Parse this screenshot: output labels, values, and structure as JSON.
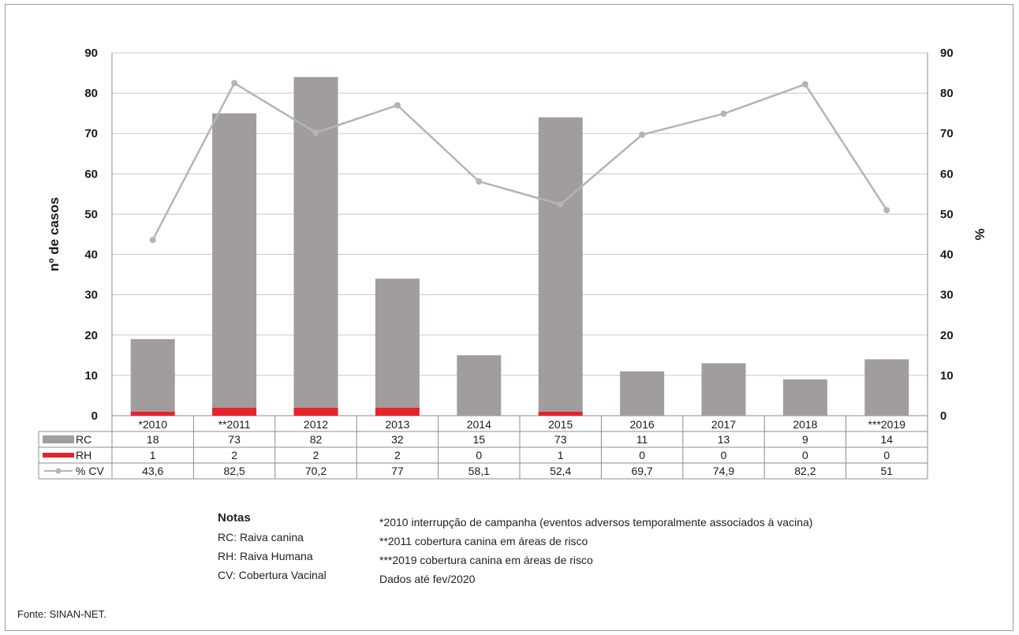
{
  "chart_data": {
    "type": "bar",
    "categories": [
      "*2010",
      "**2011",
      "2012",
      "2013",
      "2014",
      "2015",
      "2016",
      "2017",
      "2018",
      "***2019"
    ],
    "series": [
      {
        "name": "RC",
        "kind": "bar",
        "color": "#a19d9c",
        "values": [
          18,
          73,
          82,
          32,
          15,
          73,
          11,
          13,
          9,
          14
        ],
        "display": [
          "18",
          "73",
          "82",
          "32",
          "15",
          "73",
          "11",
          "13",
          "9",
          "14"
        ]
      },
      {
        "name": "RH",
        "kind": "bar",
        "color": "#e8212b",
        "values": [
          1,
          2,
          2,
          2,
          0,
          1,
          0,
          0,
          0,
          0
        ],
        "display": [
          "1",
          "2",
          "2",
          "2",
          "0",
          "1",
          "0",
          "0",
          "0",
          "0"
        ]
      },
      {
        "name": "% CV",
        "kind": "line",
        "axis": "right",
        "color": "#b4b4b4",
        "values": [
          43.6,
          82.5,
          70.2,
          77,
          58.1,
          52.4,
          69.7,
          74.9,
          82.2,
          51
        ],
        "display": [
          "43,6",
          "82,5",
          "70,2",
          "77",
          "58,1",
          "52,4",
          "69,7",
          "74,9",
          "82,2",
          "51"
        ]
      }
    ],
    "stacked": true,
    "ylabel": "nº de casos",
    "ylabel_right": "%",
    "ylim": [
      0,
      90
    ],
    "ylim_right": [
      0,
      90
    ],
    "yticks": [
      0,
      10,
      20,
      30,
      40,
      50,
      60,
      70,
      80,
      90
    ],
    "grid": true,
    "legend": "data-table"
  },
  "notes": {
    "title": "Notas",
    "left": [
      "RC: Raiva canina",
      "RH: Raiva Humana",
      "CV: Cobertura Vacinal"
    ],
    "right": [
      "*2010 interrupção de campanha (eventos adversos temporalmente associados à vacina)",
      "**2011 cobertura canina em áreas de risco",
      "***2019 cobertura canina em áreas de risco",
      "Dados até fev/2020"
    ]
  },
  "source": "Fonte: SINAN-NET."
}
